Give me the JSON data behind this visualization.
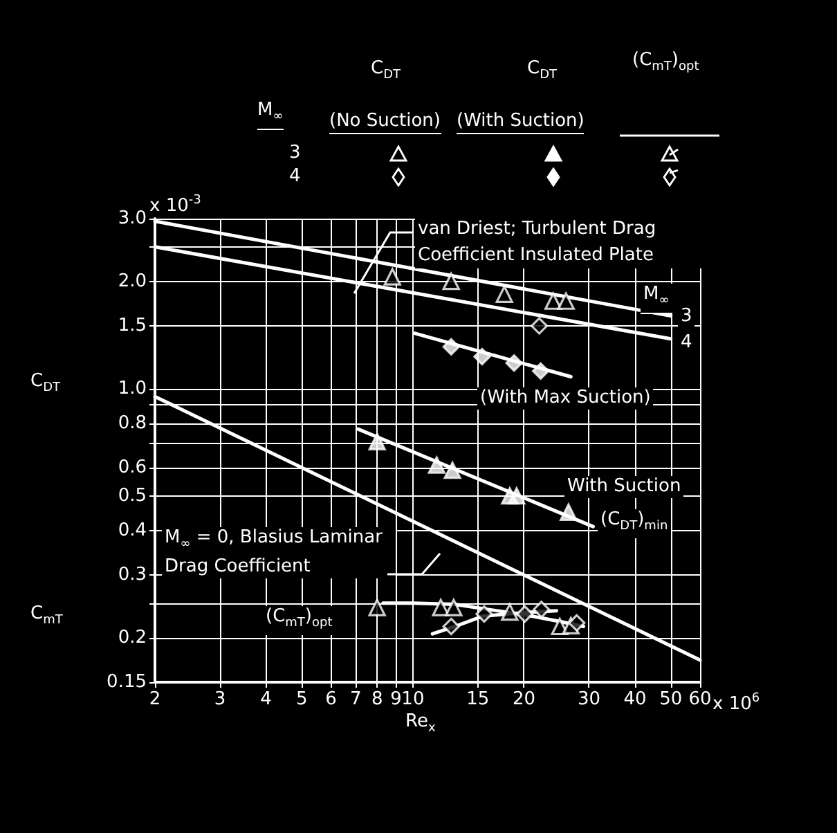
{
  "chart_data": {
    "type": "scatter",
    "xlabel": "Re$_{x}$",
    "ylabel": "C$_{DT}$",
    "xlim": [
      2,
      60
    ],
    "ylim": [
      0.15,
      3.0
    ],
    "log": "xy",
    "grid": true,
    "xticks": [
      2,
      3,
      4,
      5,
      6,
      7,
      8,
      9,
      10,
      15,
      20,
      30,
      40,
      50,
      60
    ],
    "yticks": [
      {
        "value": 3.0,
        "label": "3.0"
      },
      {
        "value": 2.5,
        "label": null
      },
      {
        "value": 2,
        "label": "2.0"
      },
      1.5,
      {
        "value": 1,
        "label": "1.0"
      },
      {
        "value": 0.9,
        "label": null
      },
      0.8,
      {
        "value": 0.7,
        "label": null
      },
      0.6,
      0.5,
      0.4,
      0.3,
      {
        "value": 0.25,
        "label": null
      },
      0.2,
      0.15
    ],
    "annotations": [
      "van Driest; Turbulent Drag Coefficient Insulated Plate",
      "M$_{∞}$",
      "3",
      "4",
      "(With Max Suction)",
      "With Suction",
      "(C$_{DT}$)$_{min}$",
      "M$_{∞}$ = 0, Blasius Laminar Drag Coefficient",
      "(C$_{mT}$)$_{opt}$",
      "C$_{mT}$",
      "C$_{DT}$",
      "C$_{DT}$",
      "(C$_{mT}$)$_{opt}$",
      "M$_{∞}$",
      "(No Suction)",
      "(With Suction)",
      "3",
      "4",
      "x 10$^{-3}$",
      "x 10$^{6}$"
    ],
    "series": [
      {
        "type": "line",
        "marker": "none",
        "color": "#ffffff",
        "x": [
          2,
          50
        ],
        "values": [
          2.95,
          1.6
        ]
      },
      {
        "type": "line",
        "marker": "none",
        "color": "#ffffff",
        "x": [
          2,
          50
        ],
        "values": [
          2.5,
          1.38
        ]
      },
      {
        "marker": "triangle",
        "color": "#000000",
        "x": [
          8.8,
          12.7,
          17.7,
          24,
          26
        ],
        "values": [
          2.06,
          2.0,
          1.84,
          1.76,
          1.76
        ]
      },
      {
        "marker": "diamond",
        "color": "#000000",
        "x": [
          22
        ],
        "values": [
          1.5
        ]
      },
      {
        "type": "line",
        "marker": "none",
        "color": "#ffffff",
        "x": [
          10.1,
          26.8
        ],
        "values": [
          1.43,
          1.08
        ]
      },
      {
        "marker": "diamond",
        "color": "#ffffff",
        "x": [
          12.7,
          15.4,
          18.8,
          22.2
        ],
        "values": [
          1.31,
          1.23,
          1.18,
          1.12
        ]
      },
      {
        "type": "line",
        "marker": "none",
        "color": "#ffffff",
        "x": [
          7.1,
          30.8
        ],
        "values": [
          0.77,
          0.41
        ]
      },
      {
        "marker": "triangle",
        "color": "#ffffff",
        "x": [
          8.0,
          11.6,
          12.8,
          18.3,
          19.1,
          26.4
        ],
        "values": [
          0.71,
          0.61,
          0.59,
          0.5,
          0.5,
          0.45
        ]
      },
      {
        "type": "line",
        "marker": "none",
        "color": "#ffffff",
        "x": [
          2,
          60
        ],
        "values": [
          0.95,
          0.173
        ]
      },
      {
        "type": "line",
        "marker": "none",
        "color": "#ffffff",
        "x": [
          8.3,
          10,
          13,
          16,
          20,
          25,
          29
        ],
        "values": [
          0.25,
          0.25,
          0.248,
          0.24,
          0.232,
          0.222,
          0.215
        ]
      },
      {
        "marker": "triangle",
        "color": "#000000",
        "x": [
          8.0,
          11.9,
          12.9,
          18.3,
          25,
          26.8
        ],
        "values": [
          0.243,
          0.243,
          0.243,
          0.236,
          0.215,
          0.216
        ]
      },
      {
        "type": "line",
        "marker": "none",
        "color": "#ffffff",
        "x": [
          11.3,
          13,
          15.5,
          18,
          21,
          24.5
        ],
        "values": [
          0.205,
          0.215,
          0.23,
          0.233,
          0.236,
          0.238
        ]
      },
      {
        "marker": "diamond",
        "color": "#000000",
        "x": [
          12.7,
          15.6,
          20.1,
          22.3,
          27.8
        ],
        "values": [
          0.215,
          0.233,
          0.233,
          0.24,
          0.22
        ]
      }
    ]
  }
}
